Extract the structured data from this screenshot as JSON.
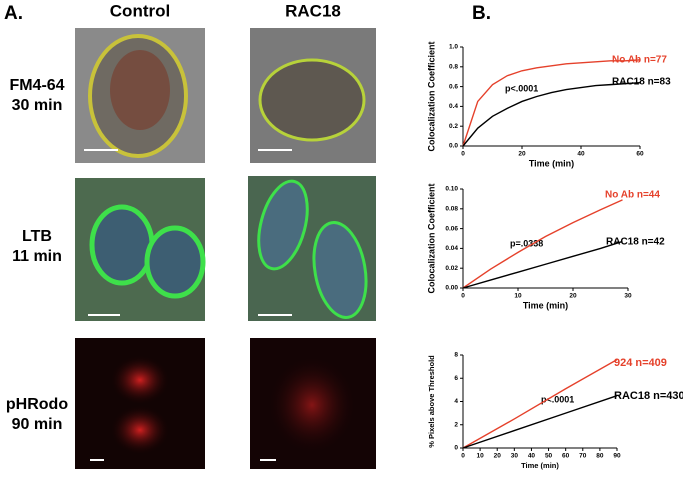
{
  "panel_a": {
    "label": "A.",
    "columns": [
      "Control",
      "RAC18"
    ],
    "rows": [
      [
        "FM4-64",
        "30 min"
      ],
      [
        "LTB",
        "11 min"
      ],
      [
        "pHRodo",
        "90 min"
      ]
    ]
  },
  "panel_b_label": "B.",
  "chart_data": [
    {
      "type": "line",
      "x_label": "Time (min)",
      "y_label": "Colocalization Coefficient",
      "annotation": "p<.0001",
      "x": [
        0,
        5,
        10,
        15,
        20,
        25,
        30,
        35,
        40,
        45,
        50,
        55,
        60
      ],
      "xlim": [
        0,
        60
      ],
      "xticks": [
        0,
        20,
        40,
        60
      ],
      "ylim": [
        0,
        1
      ],
      "yticks": [
        {
          "value": 0,
          "label": "0.0"
        },
        0.2,
        0.4,
        0.6,
        0.8,
        {
          "value": 1,
          "label": "1.0"
        }
      ],
      "series": [
        {
          "name": "No Ab n=77",
          "color": "#e5412b",
          "values": [
            0,
            0.45,
            0.62,
            0.71,
            0.76,
            0.79,
            0.81,
            0.83,
            0.84,
            0.85,
            0.86,
            0.86,
            0.87
          ]
        },
        {
          "name": "RAC18 n=83",
          "color": "#000000",
          "values": [
            0,
            0.18,
            0.3,
            0.38,
            0.45,
            0.5,
            0.54,
            0.57,
            0.59,
            0.61,
            0.62,
            0.63,
            0.64
          ]
        }
      ]
    },
    {
      "type": "line",
      "x_label": "Time (min)",
      "y_label": "Colocalization Coefficient",
      "annotation": "p=.0338",
      "x": [
        0,
        5,
        10,
        15,
        20,
        25,
        29
      ],
      "xlim": [
        0,
        30
      ],
      "xticks": [
        0,
        10,
        20,
        30
      ],
      "ylim": [
        0,
        0.1
      ],
      "yticks": [
        {
          "value": 0,
          "label": "0.00"
        },
        0.02,
        0.04,
        0.06,
        0.08,
        {
          "value": 0.1,
          "label": "0.10"
        }
      ],
      "series": [
        {
          "name": "No Ab n=44",
          "color": "#e5412b",
          "values": [
            0,
            0.019,
            0.036,
            0.052,
            0.066,
            0.079,
            0.089
          ]
        },
        {
          "name": "RAC18 n=42",
          "color": "#000000",
          "values": [
            0,
            0.008,
            0.016,
            0.024,
            0.032,
            0.04,
            0.047
          ]
        }
      ]
    },
    {
      "type": "line",
      "x_label": "Time (min)",
      "y_label": "% Pixels above Threshold",
      "annotation": "p<.0001",
      "x": [
        0,
        30,
        60,
        90
      ],
      "xlim": [
        0,
        90
      ],
      "xticks": [
        0,
        10,
        20,
        30,
        40,
        50,
        60,
        70,
        80,
        90
      ],
      "ylim": [
        0,
        8
      ],
      "yticks": [
        0,
        2,
        4,
        6,
        8
      ],
      "series": [
        {
          "name": "924 n=409",
          "color": "#e5412b",
          "values": [
            0,
            2.5,
            5.1,
            7.6
          ]
        },
        {
          "name": "RAC18 n=430",
          "color": "#000000",
          "values": [
            0,
            1.5,
            3,
            4.5
          ]
        }
      ]
    }
  ]
}
